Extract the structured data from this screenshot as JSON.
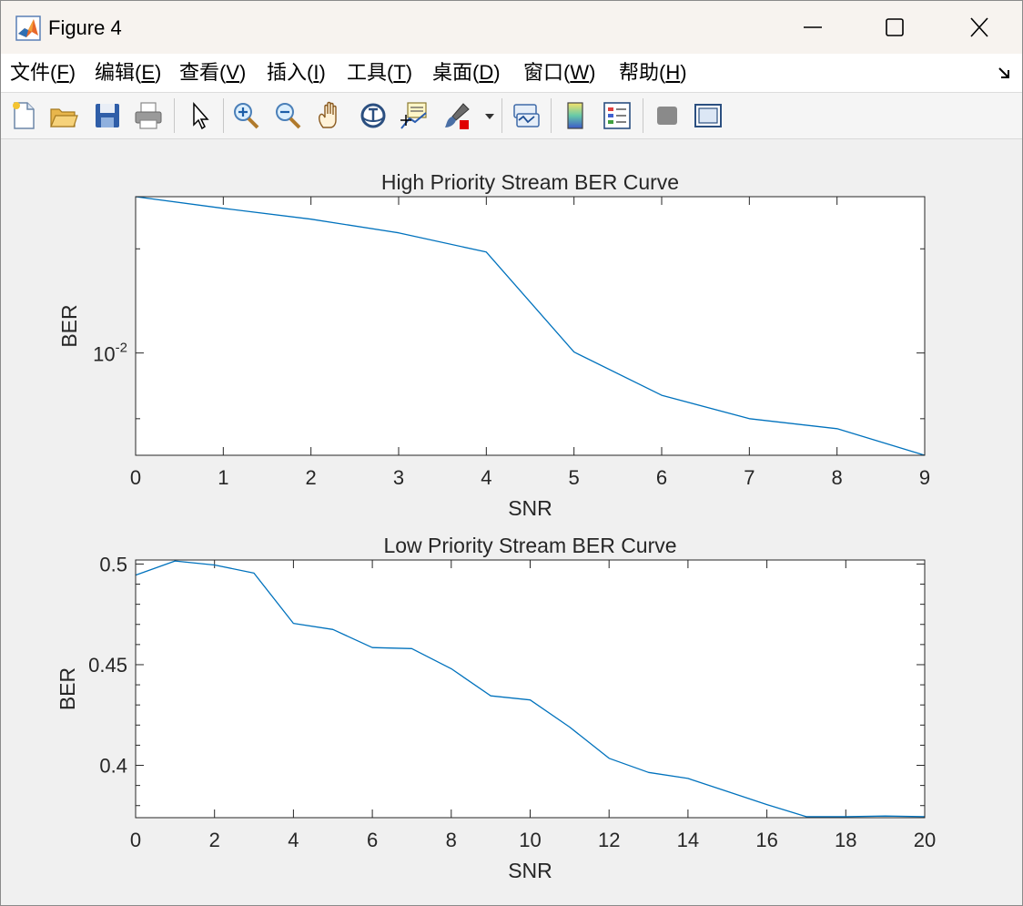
{
  "window": {
    "title": "Figure 4"
  },
  "menu": [
    {
      "text": "文件(",
      "key": "F",
      "end": ")"
    },
    {
      "text": "编辑(",
      "key": "E",
      "end": ")"
    },
    {
      "text": "查看(",
      "key": "V",
      "end": ")"
    },
    {
      "text": "插入(",
      "key": "I",
      "end": ")"
    },
    {
      "text": "工具(",
      "key": "T",
      "end": ")"
    },
    {
      "text": "桌面(",
      "key": "D",
      "end": ")"
    },
    {
      "text": "窗口(",
      "key": "W",
      "end": ")"
    },
    {
      "text": "帮助(",
      "key": "H",
      "end": ")"
    }
  ],
  "toolbar": [
    "new-figure-icon",
    "open-file-icon",
    "save-icon",
    "print-icon",
    "pointer-icon",
    "zoom-in-icon",
    "zoom-out-icon",
    "pan-hand-icon",
    "rotate-3d-icon",
    "data-cursor-icon",
    "brush-icon",
    "brush-dropdown-icon",
    "link-plot-icon",
    "colorbar-icon",
    "legend-icon",
    "hide-tools-icon",
    "show-tools-icon"
  ],
  "chart_data": [
    {
      "type": "line",
      "title": "High Priority Stream BER Curve",
      "xlabel": "SNR",
      "ylabel": "BER",
      "yscale": "log",
      "xlim": [
        0,
        9
      ],
      "ylim": [
        0.0034,
        0.052
      ],
      "xticks": [
        0,
        1,
        2,
        3,
        4,
        5,
        6,
        7,
        8,
        9
      ],
      "ytick_labels": [
        {
          "value": 0.01,
          "base": "10",
          "exp": "-2"
        }
      ],
      "yminor_ticks": [
        0.005,
        0.03
      ],
      "color": "#0072BD",
      "series": [
        {
          "x": [
            0,
            1,
            2,
            3,
            4,
            5,
            6,
            7,
            8,
            9
          ],
          "y": [
            0.052,
            0.046,
            0.041,
            0.0355,
            0.029,
            0.0101,
            0.0064,
            0.005,
            0.0045,
            0.0034
          ]
        }
      ]
    },
    {
      "type": "line",
      "title": "Low Priority Stream BER Curve",
      "xlabel": "SNR",
      "ylabel": "BER",
      "yscale": "linear",
      "xlim": [
        0,
        20
      ],
      "ylim": [
        0.374,
        0.502
      ],
      "xticks": [
        0,
        2,
        4,
        6,
        8,
        10,
        12,
        14,
        16,
        18,
        20
      ],
      "yticks": [
        0.4,
        0.45,
        0.5
      ],
      "ytick_labels": [
        "0.4",
        "0.45",
        "0.5"
      ],
      "color": "#0072BD",
      "series": [
        {
          "x": [
            0,
            1,
            2,
            3,
            4,
            5,
            6,
            7,
            8,
            9,
            10,
            11,
            12,
            13,
            14,
            15,
            16,
            17,
            18,
            19,
            20
          ],
          "y": [
            0.4945,
            0.5015,
            0.4995,
            0.4955,
            0.4705,
            0.4675,
            0.4585,
            0.458,
            0.448,
            0.4345,
            0.4325,
            0.419,
            0.4035,
            0.3965,
            0.3935,
            0.387,
            0.3805,
            0.3745,
            0.3745,
            0.3748,
            0.3745
          ]
        }
      ]
    }
  ]
}
